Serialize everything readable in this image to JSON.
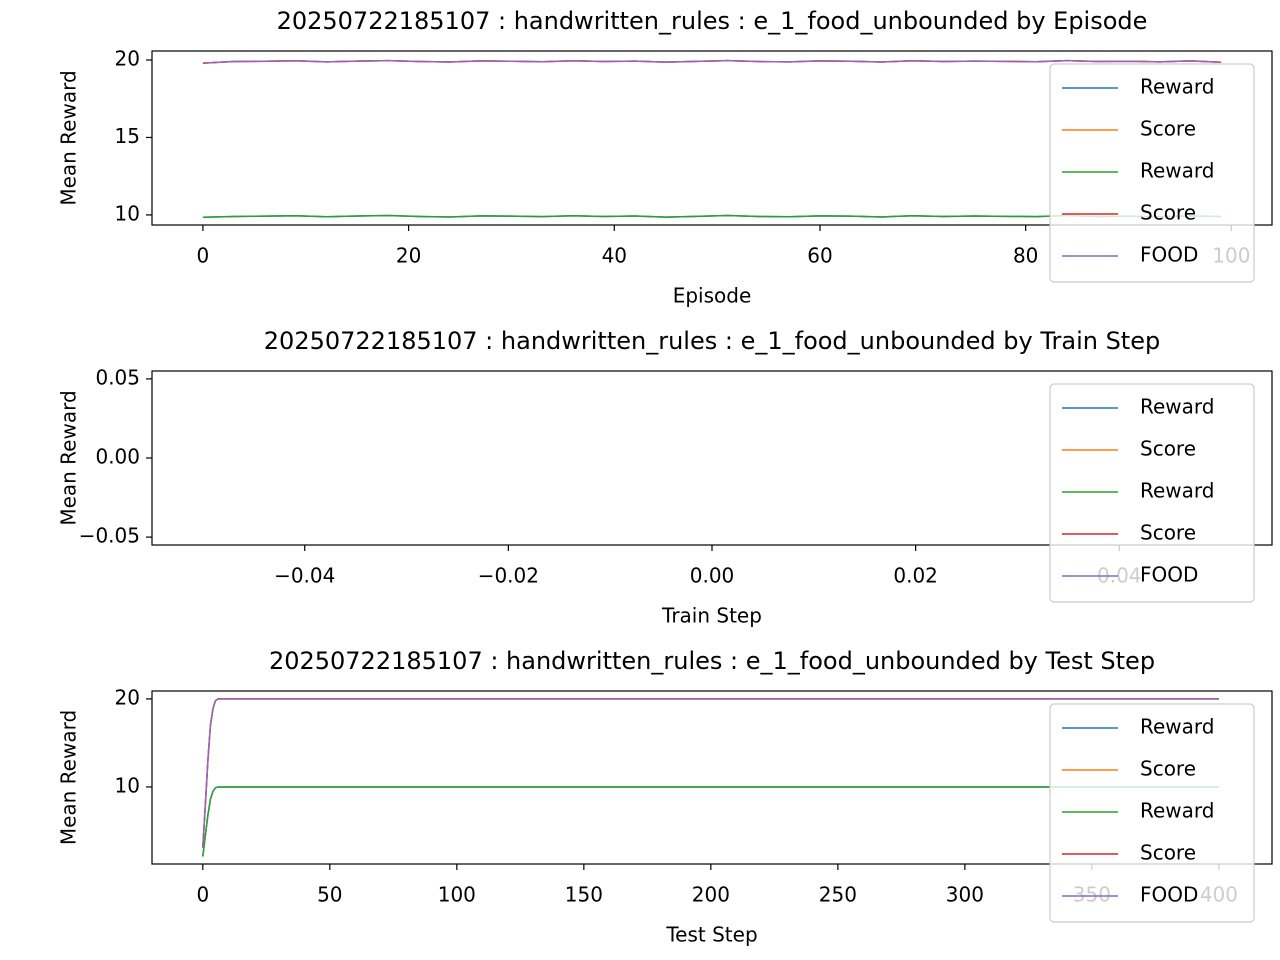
{
  "chart_data": [
    {
      "type": "line",
      "title": "20250722185107 : handwritten_rules : e_1_food_unbounded by Episode",
      "xlabel": "Episode",
      "ylabel": "Mean Reward",
      "x": [
        0,
        3,
        6,
        9,
        12,
        15,
        18,
        21,
        24,
        27,
        30,
        33,
        36,
        39,
        42,
        45,
        48,
        51,
        54,
        57,
        60,
        63,
        66,
        69,
        72,
        75,
        78,
        81,
        84,
        87,
        90,
        93,
        96,
        99
      ],
      "xlim": [
        -4.95,
        103.95
      ],
      "xticks": [
        0,
        20,
        40,
        60,
        80,
        100
      ],
      "ylim": [
        9.35,
        20.58
      ],
      "yticks": [
        10,
        15,
        20
      ],
      "legend": "upper right",
      "series": [
        {
          "name": "Reward",
          "color": "#1f77b4",
          "values": [
            9.85,
            9.9,
            9.92,
            9.95,
            9.88,
            9.93,
            9.96,
            9.9,
            9.87,
            9.94,
            9.92,
            9.89,
            9.95,
            9.9,
            9.93,
            9.86,
            9.91,
            9.96,
            9.9,
            9.88,
            9.94,
            9.92,
            9.87,
            9.95,
            9.9,
            9.93,
            9.91,
            9.89,
            9.96,
            9.9,
            9.92,
            9.88,
            9.94,
            9.9
          ]
        },
        {
          "name": "Score",
          "color": "#ff7f0e",
          "values": [
            19.8,
            19.9,
            19.92,
            19.95,
            19.88,
            19.93,
            19.96,
            19.9,
            19.87,
            19.94,
            19.92,
            19.89,
            19.95,
            19.9,
            19.93,
            19.86,
            19.91,
            19.96,
            19.9,
            19.88,
            19.94,
            19.92,
            19.87,
            19.95,
            19.9,
            19.93,
            19.91,
            19.89,
            19.96,
            19.9,
            19.92,
            19.88,
            19.94,
            19.85
          ]
        },
        {
          "name": "Reward",
          "color": "#2ca02c",
          "values": [
            9.85,
            9.9,
            9.92,
            9.95,
            9.88,
            9.93,
            9.96,
            9.9,
            9.87,
            9.94,
            9.92,
            9.89,
            9.95,
            9.9,
            9.93,
            9.86,
            9.91,
            9.96,
            9.9,
            9.88,
            9.94,
            9.92,
            9.87,
            9.95,
            9.9,
            9.93,
            9.91,
            9.89,
            9.96,
            9.9,
            9.92,
            9.88,
            9.94,
            9.9
          ]
        },
        {
          "name": "Score",
          "color": "#d62728",
          "values": [
            19.8,
            19.9,
            19.92,
            19.95,
            19.88,
            19.93,
            19.96,
            19.9,
            19.87,
            19.94,
            19.92,
            19.89,
            19.95,
            19.9,
            19.93,
            19.86,
            19.91,
            19.96,
            19.9,
            19.88,
            19.94,
            19.92,
            19.87,
            19.95,
            19.9,
            19.93,
            19.91,
            19.89,
            19.96,
            19.9,
            19.92,
            19.88,
            19.94,
            19.85
          ]
        },
        {
          "name": "FOOD",
          "color": "#9467bd",
          "values": [
            19.8,
            19.9,
            19.92,
            19.95,
            19.88,
            19.93,
            19.96,
            19.9,
            19.87,
            19.94,
            19.92,
            19.89,
            19.95,
            19.9,
            19.93,
            19.86,
            19.91,
            19.96,
            19.9,
            19.88,
            19.94,
            19.92,
            19.87,
            19.95,
            19.9,
            19.93,
            19.91,
            19.89,
            19.96,
            19.9,
            19.92,
            19.88,
            19.94,
            19.85
          ]
        }
      ]
    },
    {
      "type": "line",
      "title": "20250722185107 : handwritten_rules : e_1_food_unbounded by Train Step",
      "xlabel": "Train Step",
      "ylabel": "Mean Reward",
      "x": [],
      "xlim": [
        -0.055,
        0.055
      ],
      "xticks": [
        {
          "value": -0.04,
          "label": "−0.04"
        },
        {
          "value": -0.02,
          "label": "−0.02"
        },
        {
          "value": 0,
          "label": "0.00"
        },
        0.02,
        0.04
      ],
      "ylim": [
        -0.055,
        0.055
      ],
      "yticks": [
        {
          "value": -0.05,
          "label": "−0.05"
        },
        {
          "value": 0,
          "label": "0.00"
        },
        0.05
      ],
      "legend": "upper right",
      "series": [
        {
          "name": "Reward",
          "color": "#1f77b4",
          "values": []
        },
        {
          "name": "Score",
          "color": "#ff7f0e",
          "values": []
        },
        {
          "name": "Reward",
          "color": "#2ca02c",
          "values": []
        },
        {
          "name": "Score",
          "color": "#d62728",
          "values": []
        },
        {
          "name": "FOOD",
          "color": "#9467bd",
          "values": []
        }
      ]
    },
    {
      "type": "line",
      "title": "20250722185107 : handwritten_rules : e_1_food_unbounded by Test Step",
      "xlabel": "Test Step",
      "ylabel": "Mean Reward",
      "x": [
        0,
        1,
        2,
        3,
        4,
        5,
        6,
        400
      ],
      "xlim": [
        -20,
        420.9
      ],
      "xticks": [
        0,
        50,
        100,
        150,
        200,
        250,
        300,
        350,
        400
      ],
      "ylim": [
        1.25,
        20.9
      ],
      "yticks": [
        10,
        20
      ],
      "legend": "upper right",
      "series": [
        {
          "name": "Reward",
          "color": "#1f77b4",
          "values": [
            2.1,
            4.5,
            6.8,
            8.6,
            9.5,
            9.9,
            10,
            10
          ]
        },
        {
          "name": "Score",
          "color": "#ff7f0e",
          "values": [
            3.1,
            8,
            13,
            17,
            18.9,
            19.8,
            20,
            20
          ]
        },
        {
          "name": "Reward",
          "color": "#2ca02c",
          "values": [
            2.1,
            4.5,
            6.8,
            8.6,
            9.5,
            9.9,
            10,
            10
          ]
        },
        {
          "name": "Score",
          "color": "#d62728",
          "values": [
            3.1,
            8,
            13,
            17,
            18.9,
            19.8,
            20,
            20
          ]
        },
        {
          "name": "FOOD",
          "color": "#9467bd",
          "values": [
            3.1,
            8,
            13,
            17,
            18.9,
            19.8,
            20,
            20
          ]
        }
      ]
    }
  ]
}
